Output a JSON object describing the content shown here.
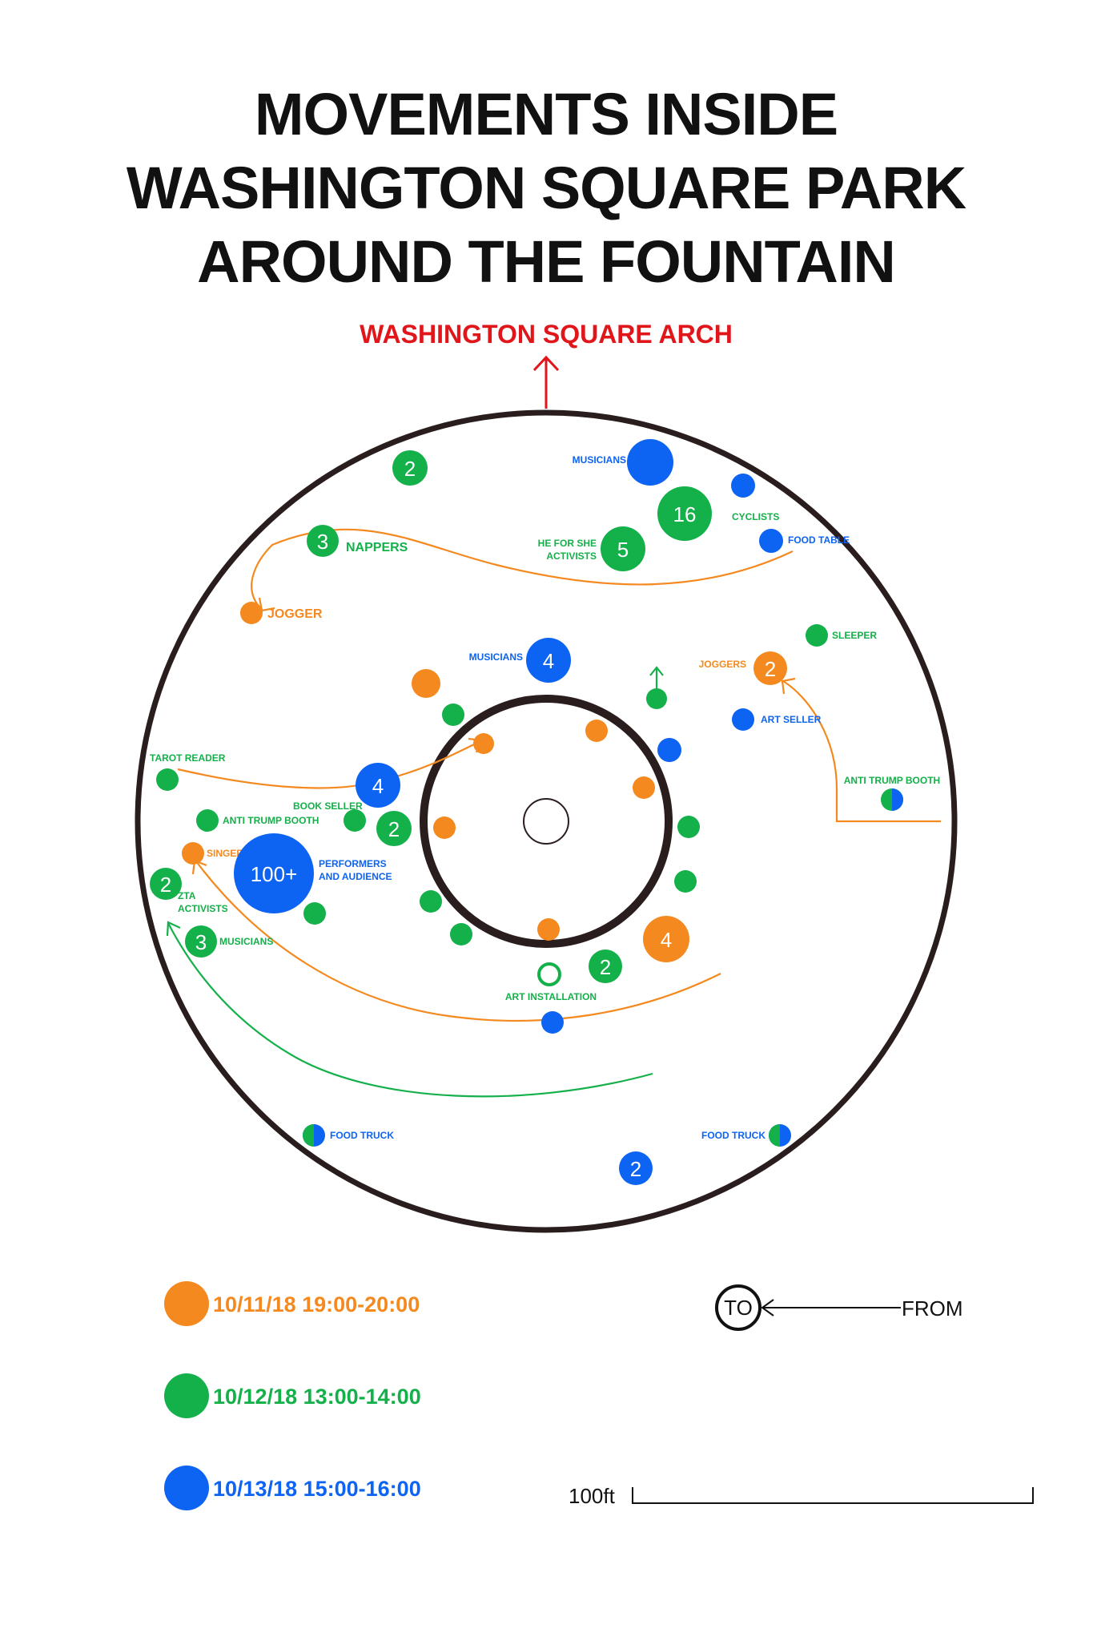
{
  "title_lines": [
    "MOVEMENTS INSIDE",
    "WASHINGTON SQUARE PARK",
    "AROUND THE FOUNTAIN"
  ],
  "arch_label": "WASHINGTON SQUARE ARCH",
  "colors": {
    "oct11": "#f4891f",
    "oct12": "#14b04a",
    "oct13": "#0d63f2",
    "arch": "#e0161b",
    "ink": "#2a1d1d"
  },
  "markers": [
    {
      "id": "m-2-top",
      "set": "oct12",
      "count": "2",
      "label": ""
    },
    {
      "id": "m-musicians-top",
      "set": "oct13",
      "count": "",
      "label": "MUSICIANS"
    },
    {
      "id": "m-16",
      "set": "oct12",
      "count": "16",
      "label": ""
    },
    {
      "id": "m-cyclists",
      "set": "oct13",
      "count": "",
      "label": "CYCLISTS"
    },
    {
      "id": "m-food-table",
      "set": "oct13",
      "count": "",
      "label": "FOOD TABLE"
    },
    {
      "id": "m-heforshe",
      "set": "oct12",
      "count": "5",
      "label": "HE FOR SHE ACTIVISTS"
    },
    {
      "id": "m-nappers",
      "set": "oct12",
      "count": "3",
      "label": "NAPPERS"
    },
    {
      "id": "m-jogger",
      "set": "oct11",
      "count": "",
      "label": "JOGGER"
    },
    {
      "id": "m-sleeper",
      "set": "oct12",
      "count": "",
      "label": "SLEEPER"
    },
    {
      "id": "m-musicians-4",
      "set": "oct13",
      "count": "4",
      "label": "MUSICIANS"
    },
    {
      "id": "m-joggers-2",
      "set": "oct11",
      "count": "2",
      "label": "JOGGERS"
    },
    {
      "id": "m-art-seller",
      "set": "oct13",
      "count": "",
      "label": "ART SELLER"
    },
    {
      "id": "m-anti-trump-right",
      "set": "mixed",
      "count": "",
      "label": "ANTI TRUMP BOOTH"
    },
    {
      "id": "m-tarot",
      "set": "oct12",
      "count": "",
      "label": "TAROT READER"
    },
    {
      "id": "m-4-blue",
      "set": "oct13",
      "count": "4",
      "label": ""
    },
    {
      "id": "m-book-seller",
      "set": "oct12",
      "count": "",
      "label": "BOOK SELLER"
    },
    {
      "id": "m-2-left",
      "set": "oct12",
      "count": "2",
      "label": ""
    },
    {
      "id": "m-anti-trump-left",
      "set": "oct12",
      "count": "",
      "label": "ANTI TRUMP BOOTH"
    },
    {
      "id": "m-singer",
      "set": "oct11",
      "count": "",
      "label": "SINGER"
    },
    {
      "id": "m-performers",
      "set": "oct13",
      "count": "100+",
      "label": "PERFORMERS AND AUDIENCE"
    },
    {
      "id": "m-zta",
      "set": "oct12",
      "count": "2",
      "label": "ZTA ACTIVISTS"
    },
    {
      "id": "m-musicians-3",
      "set": "oct12",
      "count": "3",
      "label": "MUSICIANS"
    },
    {
      "id": "m-4-orange",
      "set": "oct11",
      "count": "4",
      "label": ""
    },
    {
      "id": "m-2-bottom",
      "set": "oct12",
      "count": "2",
      "label": ""
    },
    {
      "id": "m-art-installation",
      "set": "ring",
      "count": "",
      "label": "ART INSTALLATION"
    },
    {
      "id": "m-food-truck-left",
      "set": "mixed",
      "count": "",
      "label": "FOOD TRUCK"
    },
    {
      "id": "m-food-truck-right",
      "set": "mixed",
      "count": "",
      "label": "FOOD TRUCK"
    },
    {
      "id": "m-2-blue-bottom",
      "set": "oct13",
      "count": "2",
      "label": ""
    }
  ],
  "legend": [
    {
      "set": "oct11",
      "label": "10/11/18 19:00-20:00"
    },
    {
      "set": "oct12",
      "label": "10/12/18 13:00-14:00"
    },
    {
      "set": "oct13",
      "label": "10/13/18 15:00-16:00"
    }
  ],
  "movement_key": {
    "to": "TO",
    "from": "FROM"
  },
  "scale_label": "100ft"
}
